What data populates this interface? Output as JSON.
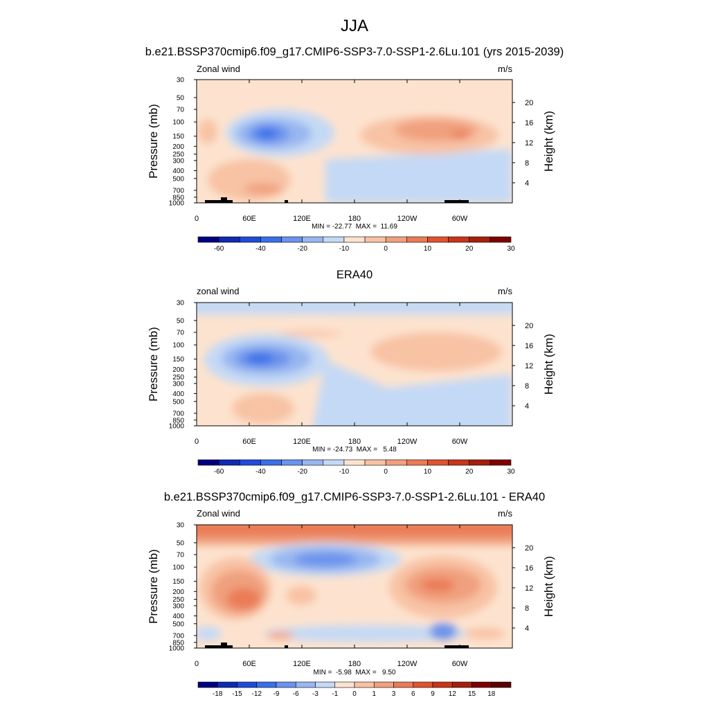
{
  "figure": {
    "title": "JJA"
  },
  "chart_data": [
    {
      "type": "heatmap",
      "title": "b.e21.BSSP370cmip6.f09_g17.CMIP6-SSP3-7.0-SSP1-2.6Lu.101 (yrs 2015-2039)",
      "left_string": "Zonal wind",
      "units": "m/s",
      "ylabel": "Pressure (mb)",
      "ylabel_right": "Height (km)",
      "x_ticks": [
        "0",
        "60E",
        "120E",
        "180",
        "120W",
        "60W"
      ],
      "y_ticks": [
        "30",
        "50",
        "70",
        "100",
        "150",
        "200",
        "250",
        "300",
        "400",
        "500",
        "700",
        "850",
        "1000"
      ],
      "height_ticks": [
        "20",
        "16",
        "12",
        "8",
        "4"
      ],
      "stats": "MIN = -22.77  MAX =  11.69",
      "min": -22.77,
      "max": 11.69,
      "colorbar_labels": [
        "-60",
        "-40",
        "-20",
        "-10",
        "0",
        "10",
        "20",
        "30"
      ],
      "colors": [
        "#00007f",
        "#0e2bb2",
        "#1f4bd9",
        "#3a6fe8",
        "#6a93ec",
        "#98b6f0",
        "#c4d9f5",
        "#fde3cf",
        "#f8c2a4",
        "#f0a07e",
        "#ea7b57",
        "#e0532f",
        "#c83519",
        "#a4200c",
        "#7f0000"
      ],
      "features": [
        {
          "name": "easterly jet core",
          "lon": 65,
          "lat_p": 150,
          "value": -22.77
        },
        {
          "name": "westerly jet",
          "lon": 275,
          "lat_p": 150,
          "value": 11.69
        }
      ]
    },
    {
      "type": "heatmap",
      "title": "ERA40",
      "left_string": "zonal wind",
      "units": "m/s",
      "ylabel": "Pressure (mb)",
      "ylabel_right": "Height (km)",
      "x_ticks": [
        "0",
        "60E",
        "120E",
        "180",
        "120W",
        "60W"
      ],
      "y_ticks": [
        "30",
        "50",
        "70",
        "100",
        "150",
        "200",
        "250",
        "300",
        "400",
        "500",
        "700",
        "850",
        "1000"
      ],
      "height_ticks": [
        "20",
        "16",
        "12",
        "8",
        "4"
      ],
      "stats": "MIN = -24.73  MAX =   5.48",
      "min": -24.73,
      "max": 5.48,
      "colorbar_labels": [
        "-60",
        "-40",
        "-20",
        "-10",
        "0",
        "10",
        "20",
        "30"
      ],
      "colors": [
        "#00007f",
        "#0e2bb2",
        "#1f4bd9",
        "#3a6fe8",
        "#6a93ec",
        "#98b6f0",
        "#c4d9f5",
        "#fde3cf",
        "#f8c2a4",
        "#f0a07e",
        "#ea7b57",
        "#e0532f",
        "#c83519",
        "#a4200c",
        "#7f0000"
      ]
    },
    {
      "type": "heatmap",
      "title": "b.e21.BSSP370cmip6.f09_g17.CMIP6-SSP3-7.0-SSP1-2.6Lu.101 - ERA40",
      "left_string": "Zonal wind",
      "units": "m/s",
      "ylabel": "Pressure (mb)",
      "ylabel_right": "Height (km)",
      "x_ticks": [
        "0",
        "60E",
        "120E",
        "180",
        "120W",
        "60W"
      ],
      "y_ticks": [
        "30",
        "50",
        "70",
        "100",
        "150",
        "200",
        "250",
        "300",
        "400",
        "500",
        "700",
        "850",
        "1000"
      ],
      "height_ticks": [
        "20",
        "16",
        "12",
        "8",
        "4"
      ],
      "stats": "MIN =  -5.98  MAX =   9.50",
      "min": -5.98,
      "max": 9.5,
      "colorbar_labels": [
        "-18",
        "-15",
        "-12",
        "-9",
        "-6",
        "-3",
        "-1",
        "0",
        "1",
        "3",
        "6",
        "9",
        "12",
        "15",
        "18"
      ],
      "colors": [
        "#00007f",
        "#0e2bb2",
        "#1f4bd9",
        "#3a6fe8",
        "#6a93ec",
        "#98b6f0",
        "#c4d9f5",
        "#fde3cf",
        "#f8c2a4",
        "#f0a07e",
        "#ea7b57",
        "#e0532f",
        "#c83519",
        "#a4200c",
        "#7f0000",
        "#5a0000"
      ]
    }
  ]
}
